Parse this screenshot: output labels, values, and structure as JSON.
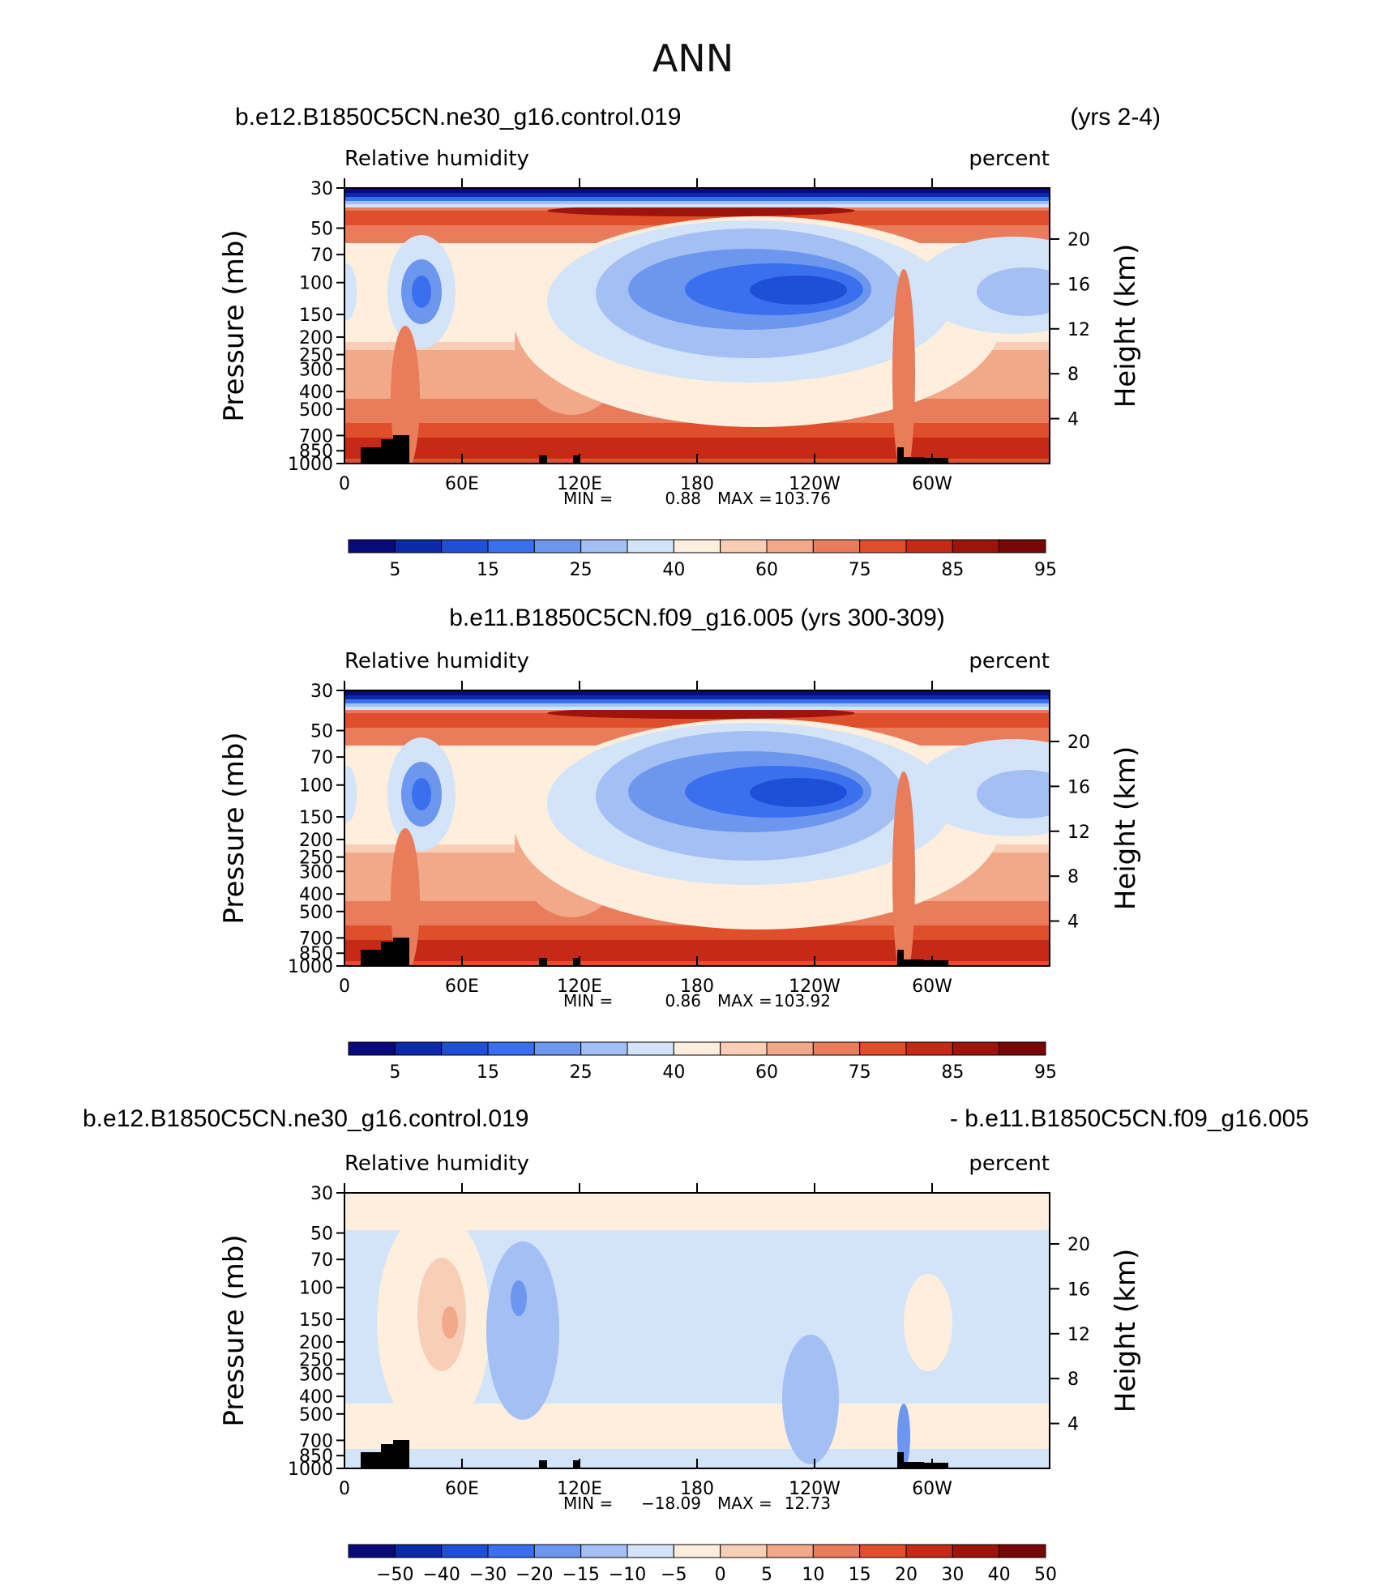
{
  "figure": {
    "title": "ANN",
    "colors": {
      "rh_scale": [
        "#0a0a7a",
        "#0a2aa8",
        "#1f4fd6",
        "#3a70ee",
        "#6d96ef",
        "#a3bff4",
        "#d3e3f8",
        "#fdeede",
        "#f8cfb6",
        "#f1a98a",
        "#e87c5b",
        "#df4f2b",
        "#c52a16",
        "#9c140c",
        "#780707"
      ],
      "diff_scale": [
        "#0a0a7a",
        "#0a2aa8",
        "#1f4fd6",
        "#3a70ee",
        "#6d96ef",
        "#a3bff4",
        "#d3e3f8",
        "#fdeede",
        "#f8cfb6",
        "#f1a98a",
        "#e87c5b",
        "#df4f2b",
        "#c52a16",
        "#9c140c",
        "#780707"
      ],
      "topography": "#000000"
    }
  },
  "chart_data": [
    {
      "type": "heatmap",
      "title_left": "b.e12.B1850C5CN.ne30_g16.control.019",
      "title_right": "(yrs 2-4)",
      "subtitle_left": "Relative  humidity",
      "subtitle_right": "percent",
      "ylabel": "Pressure  (mb)",
      "ylabel_right": "Height  (km)",
      "pressure_ticks": [
        "30",
        "50",
        "70",
        "100",
        "150",
        "200",
        "250",
        "300",
        "400",
        "500",
        "700",
        "850",
        "1000"
      ],
      "height_ticks": [
        "20",
        "16",
        "12",
        "8",
        "4"
      ],
      "lon_ticks": [
        "0",
        "60E",
        "120E",
        "180",
        "120W",
        "60W"
      ],
      "stats": {
        "min_label": "MIN =",
        "min": "0.88",
        "max_label": "MAX =",
        "max": "103.76"
      },
      "colorbar_labels": [
        "5",
        "15",
        "25",
        "40",
        "60",
        "75",
        "85",
        "95"
      ]
    },
    {
      "type": "heatmap",
      "title_center": "b.e11.B1850C5CN.f09_g16.005 (yrs 300-309)",
      "subtitle_left": "Relative  humidity",
      "subtitle_right": "percent",
      "ylabel": "Pressure  (mb)",
      "ylabel_right": "Height  (km)",
      "pressure_ticks": [
        "30",
        "50",
        "70",
        "100",
        "150",
        "200",
        "250",
        "300",
        "400",
        "500",
        "700",
        "850",
        "1000"
      ],
      "height_ticks": [
        "20",
        "16",
        "12",
        "8",
        "4"
      ],
      "lon_ticks": [
        "0",
        "60E",
        "120E",
        "180",
        "120W",
        "60W"
      ],
      "stats": {
        "min_label": "MIN =",
        "min": "0.86",
        "max_label": "MAX =",
        "max": "103.92"
      },
      "colorbar_labels": [
        "5",
        "15",
        "25",
        "40",
        "60",
        "75",
        "85",
        "95"
      ]
    },
    {
      "type": "heatmap",
      "title_left": "b.e12.B1850C5CN.ne30_g16.control.019",
      "title_right": "- b.e11.B1850C5CN.f09_g16.005",
      "subtitle_left": "Relative  humidity",
      "subtitle_right": "percent",
      "ylabel": "Pressure  (mb)",
      "ylabel_right": "Height  (km)",
      "pressure_ticks": [
        "30",
        "50",
        "70",
        "100",
        "150",
        "200",
        "250",
        "300",
        "400",
        "500",
        "700",
        "850",
        "1000"
      ],
      "height_ticks": [
        "20",
        "16",
        "12",
        "8",
        "4"
      ],
      "lon_ticks": [
        "0",
        "60E",
        "120E",
        "180",
        "120W",
        "60W"
      ],
      "stats": {
        "min_label": "MIN =",
        "min": "−18.09",
        "max_label": "MAX =",
        "max": "12.73"
      },
      "colorbar_labels": [
        "−50",
        "−40",
        "−30",
        "−20",
        "−15",
        "−10",
        "−5",
        "0",
        "5",
        "10",
        "15",
        "20",
        "30",
        "40",
        "50"
      ]
    }
  ]
}
